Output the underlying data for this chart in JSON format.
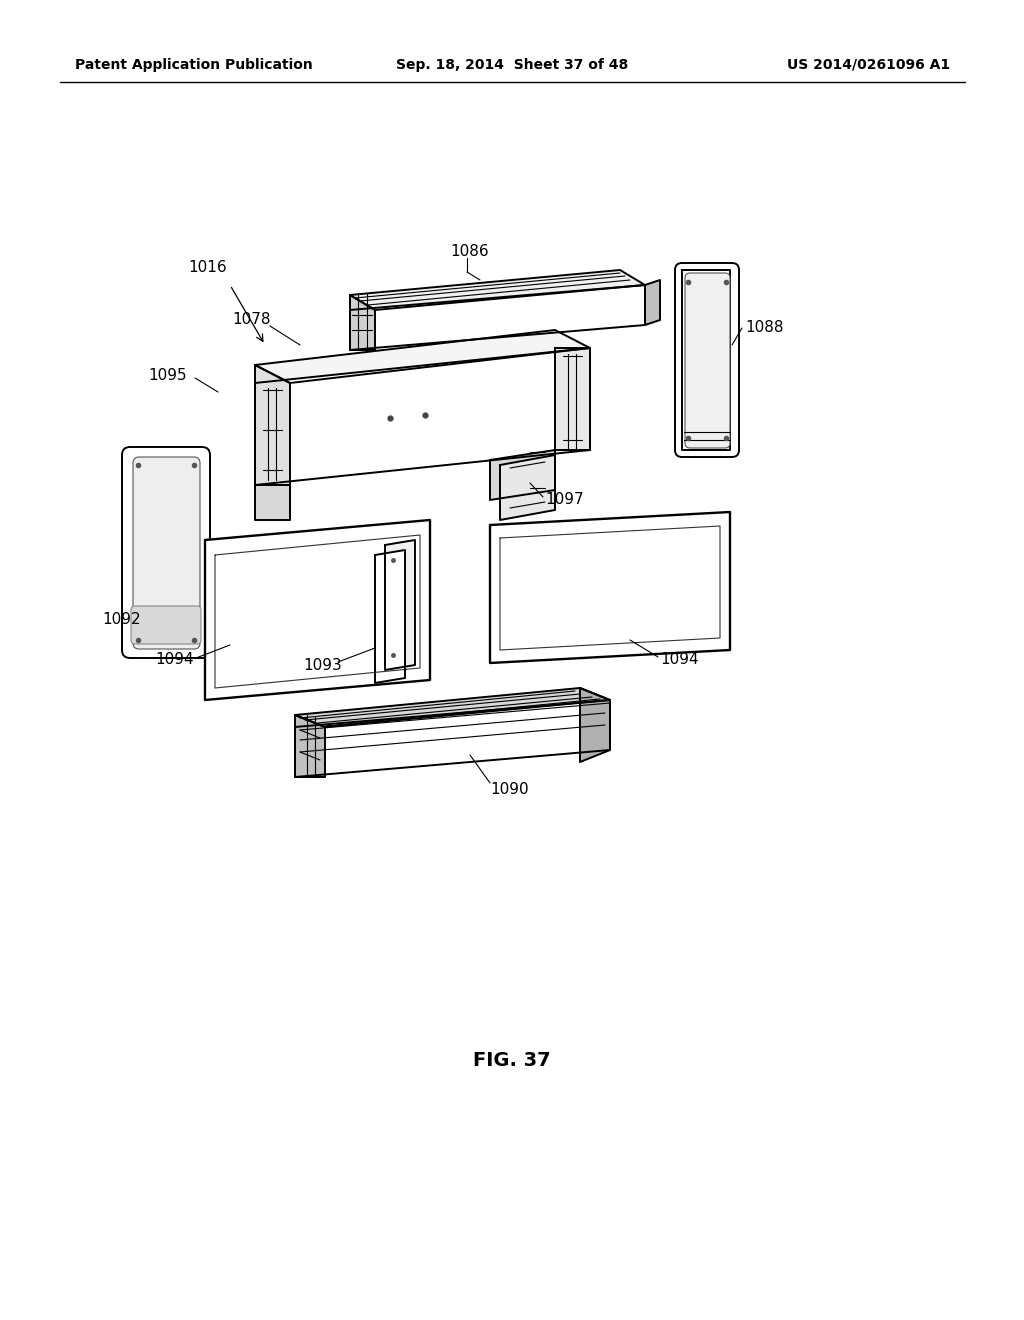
{
  "title": "FIG. 37",
  "header_left": "Patent Application Publication",
  "header_mid": "Sep. 18, 2014  Sheet 37 of 48",
  "header_right": "US 2014/0261096 A1",
  "bg": "#ffffff",
  "lw_main": 1.4,
  "lw_thin": 0.8,
  "lw_leader": 0.8,
  "fs_label": 11,
  "fs_header": 10,
  "fs_title": 14
}
